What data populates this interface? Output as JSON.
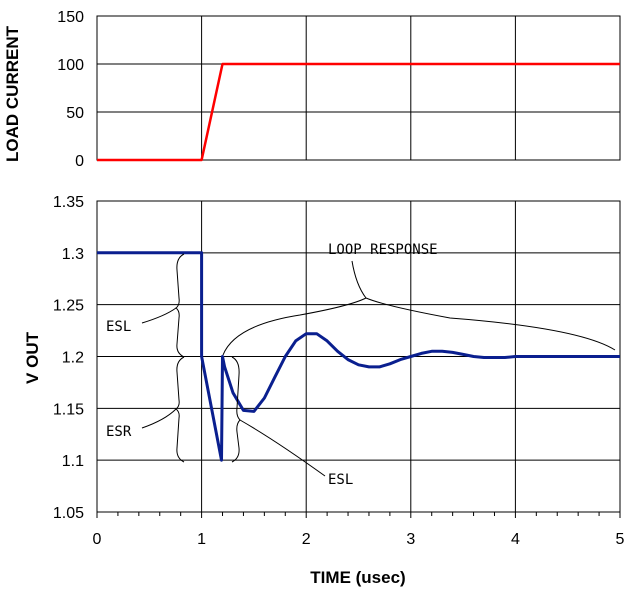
{
  "chart_data": [
    {
      "type": "line",
      "ylabel": "LOAD CURRENT",
      "xlim": [
        0,
        5
      ],
      "ylim": [
        0,
        150
      ],
      "y_ticks": [
        0,
        50,
        100,
        150
      ],
      "grid": true,
      "series": [
        {
          "color": "#ff0000",
          "x": [
            0,
            1,
            1.2,
            5
          ],
          "y": [
            0,
            0,
            100,
            100
          ]
        }
      ]
    },
    {
      "type": "line",
      "xlabel": "TIME (usec)",
      "ylabel": "V OUT",
      "xlim": [
        0,
        5
      ],
      "ylim": [
        1.05,
        1.35
      ],
      "x_ticks": [
        0,
        1,
        2,
        3,
        4,
        5
      ],
      "y_ticks": [
        1.05,
        1.1,
        1.15,
        1.2,
        1.25,
        1.3,
        1.35
      ],
      "grid": true,
      "series": [
        {
          "color": "#0a1f8f",
          "x": [
            0,
            1,
            1.0,
            1.19,
            1.2,
            1.22,
            1.3,
            1.4,
            1.5,
            1.6,
            1.7,
            1.8,
            1.9,
            2.0,
            2.1,
            2.2,
            2.3,
            2.4,
            2.5,
            2.6,
            2.7,
            2.8,
            2.9,
            3.0,
            3.1,
            3.2,
            3.3,
            3.4,
            3.5,
            3.6,
            3.7,
            3.8,
            3.9,
            4.0,
            4.5,
            5.0
          ],
          "y": [
            1.3,
            1.3,
            1.2,
            1.1,
            1.2,
            1.19,
            1.165,
            1.148,
            1.147,
            1.16,
            1.18,
            1.2,
            1.215,
            1.222,
            1.222,
            1.215,
            1.205,
            1.197,
            1.192,
            1.19,
            1.19,
            1.193,
            1.197,
            1.2,
            1.203,
            1.205,
            1.205,
            1.204,
            1.202,
            1.2,
            1.199,
            1.199,
            1.199,
            1.2,
            1.2,
            1.2
          ]
        }
      ],
      "annotations": [
        "LOOP RESPONSE",
        "ESL",
        "ESR",
        "ESL"
      ]
    }
  ],
  "labels": {
    "top_ylabel": "LOAD CURRENT",
    "bottom_ylabel": "V OUT",
    "xlabel": "TIME (usec)",
    "loop_response": "LOOP RESPONSE",
    "esl_left": "ESL",
    "esr": "ESR",
    "esl_bottom": "ESL"
  },
  "colors": {
    "load_current_line": "#ff0000",
    "vout_line": "#0a1f8f",
    "grid": "#000000"
  }
}
